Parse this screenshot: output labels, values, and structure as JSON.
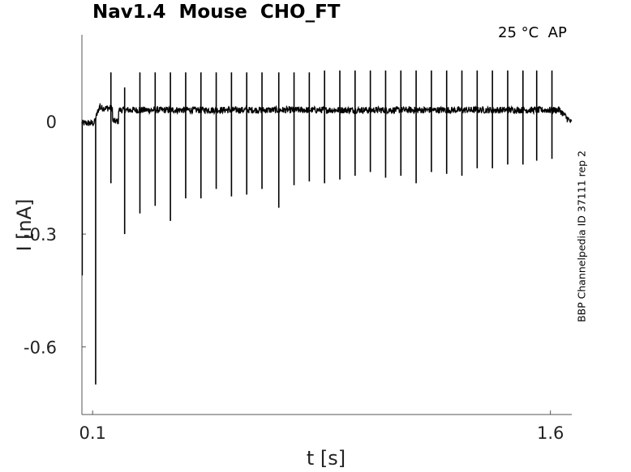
{
  "chart_data": {
    "type": "line",
    "title": "Nav1.4  Mouse  CHO_FT",
    "condition": "25 °C  AP",
    "side_label": "BBP Channelpedia ID 37111 rep 2",
    "xlabel": "t [s]",
    "ylabel": "I [nA]",
    "xlim": [
      0.065,
      1.67
    ],
    "ylim": [
      -0.78,
      0.23
    ],
    "xticks": [
      {
        "value": 0.1,
        "label": "0.1"
      },
      {
        "value": 1.6,
        "label": "1.6"
      }
    ],
    "yticks": [
      {
        "value": 0,
        "label": "0"
      },
      {
        "value": -0.3,
        "label": "-0.3"
      },
      {
        "value": -0.6,
        "label": "-0.6"
      }
    ],
    "grid": false,
    "line_color": "#000000",
    "baseline_before": -0.005,
    "baseline_during": 0.03,
    "baseline_after": -0.005,
    "stimulus_on": 0.105,
    "stimulus_off": 1.63,
    "spikes": [
      {
        "t": 0.11,
        "peak": 0.0,
        "trough": -0.7
      },
      {
        "t": 0.16,
        "peak": 0.13,
        "trough": -0.165
      },
      {
        "t": 0.205,
        "peak": 0.09,
        "trough": -0.3
      },
      {
        "t": 0.255,
        "peak": 0.13,
        "trough": -0.245
      },
      {
        "t": 0.305,
        "peak": 0.13,
        "trough": -0.225
      },
      {
        "t": 0.355,
        "peak": 0.13,
        "trough": -0.265
      },
      {
        "t": 0.405,
        "peak": 0.13,
        "trough": -0.205
      },
      {
        "t": 0.455,
        "peak": 0.13,
        "trough": -0.205
      },
      {
        "t": 0.505,
        "peak": 0.13,
        "trough": -0.18
      },
      {
        "t": 0.555,
        "peak": 0.13,
        "trough": -0.2
      },
      {
        "t": 0.605,
        "peak": 0.13,
        "trough": -0.195
      },
      {
        "t": 0.655,
        "peak": 0.13,
        "trough": -0.18
      },
      {
        "t": 0.71,
        "peak": 0.13,
        "trough": -0.23
      },
      {
        "t": 0.76,
        "peak": 0.13,
        "trough": -0.17
      },
      {
        "t": 0.81,
        "peak": 0.13,
        "trough": -0.16
      },
      {
        "t": 0.86,
        "peak": 0.135,
        "trough": -0.165
      },
      {
        "t": 0.91,
        "peak": 0.135,
        "trough": -0.155
      },
      {
        "t": 0.96,
        "peak": 0.135,
        "trough": -0.145
      },
      {
        "t": 1.01,
        "peak": 0.135,
        "trough": -0.135
      },
      {
        "t": 1.06,
        "peak": 0.135,
        "trough": -0.15
      },
      {
        "t": 1.11,
        "peak": 0.135,
        "trough": -0.145
      },
      {
        "t": 1.16,
        "peak": 0.135,
        "trough": -0.165
      },
      {
        "t": 1.21,
        "peak": 0.135,
        "trough": -0.135
      },
      {
        "t": 1.26,
        "peak": 0.135,
        "trough": -0.14
      },
      {
        "t": 1.31,
        "peak": 0.135,
        "trough": -0.145
      },
      {
        "t": 1.36,
        "peak": 0.135,
        "trough": -0.125
      },
      {
        "t": 1.41,
        "peak": 0.135,
        "trough": -0.125
      },
      {
        "t": 1.46,
        "peak": 0.135,
        "trough": -0.115
      },
      {
        "t": 1.51,
        "peak": 0.135,
        "trough": -0.115
      },
      {
        "t": 1.555,
        "peak": 0.135,
        "trough": -0.105
      },
      {
        "t": 1.605,
        "peak": 0.135,
        "trough": -0.1
      }
    ]
  }
}
